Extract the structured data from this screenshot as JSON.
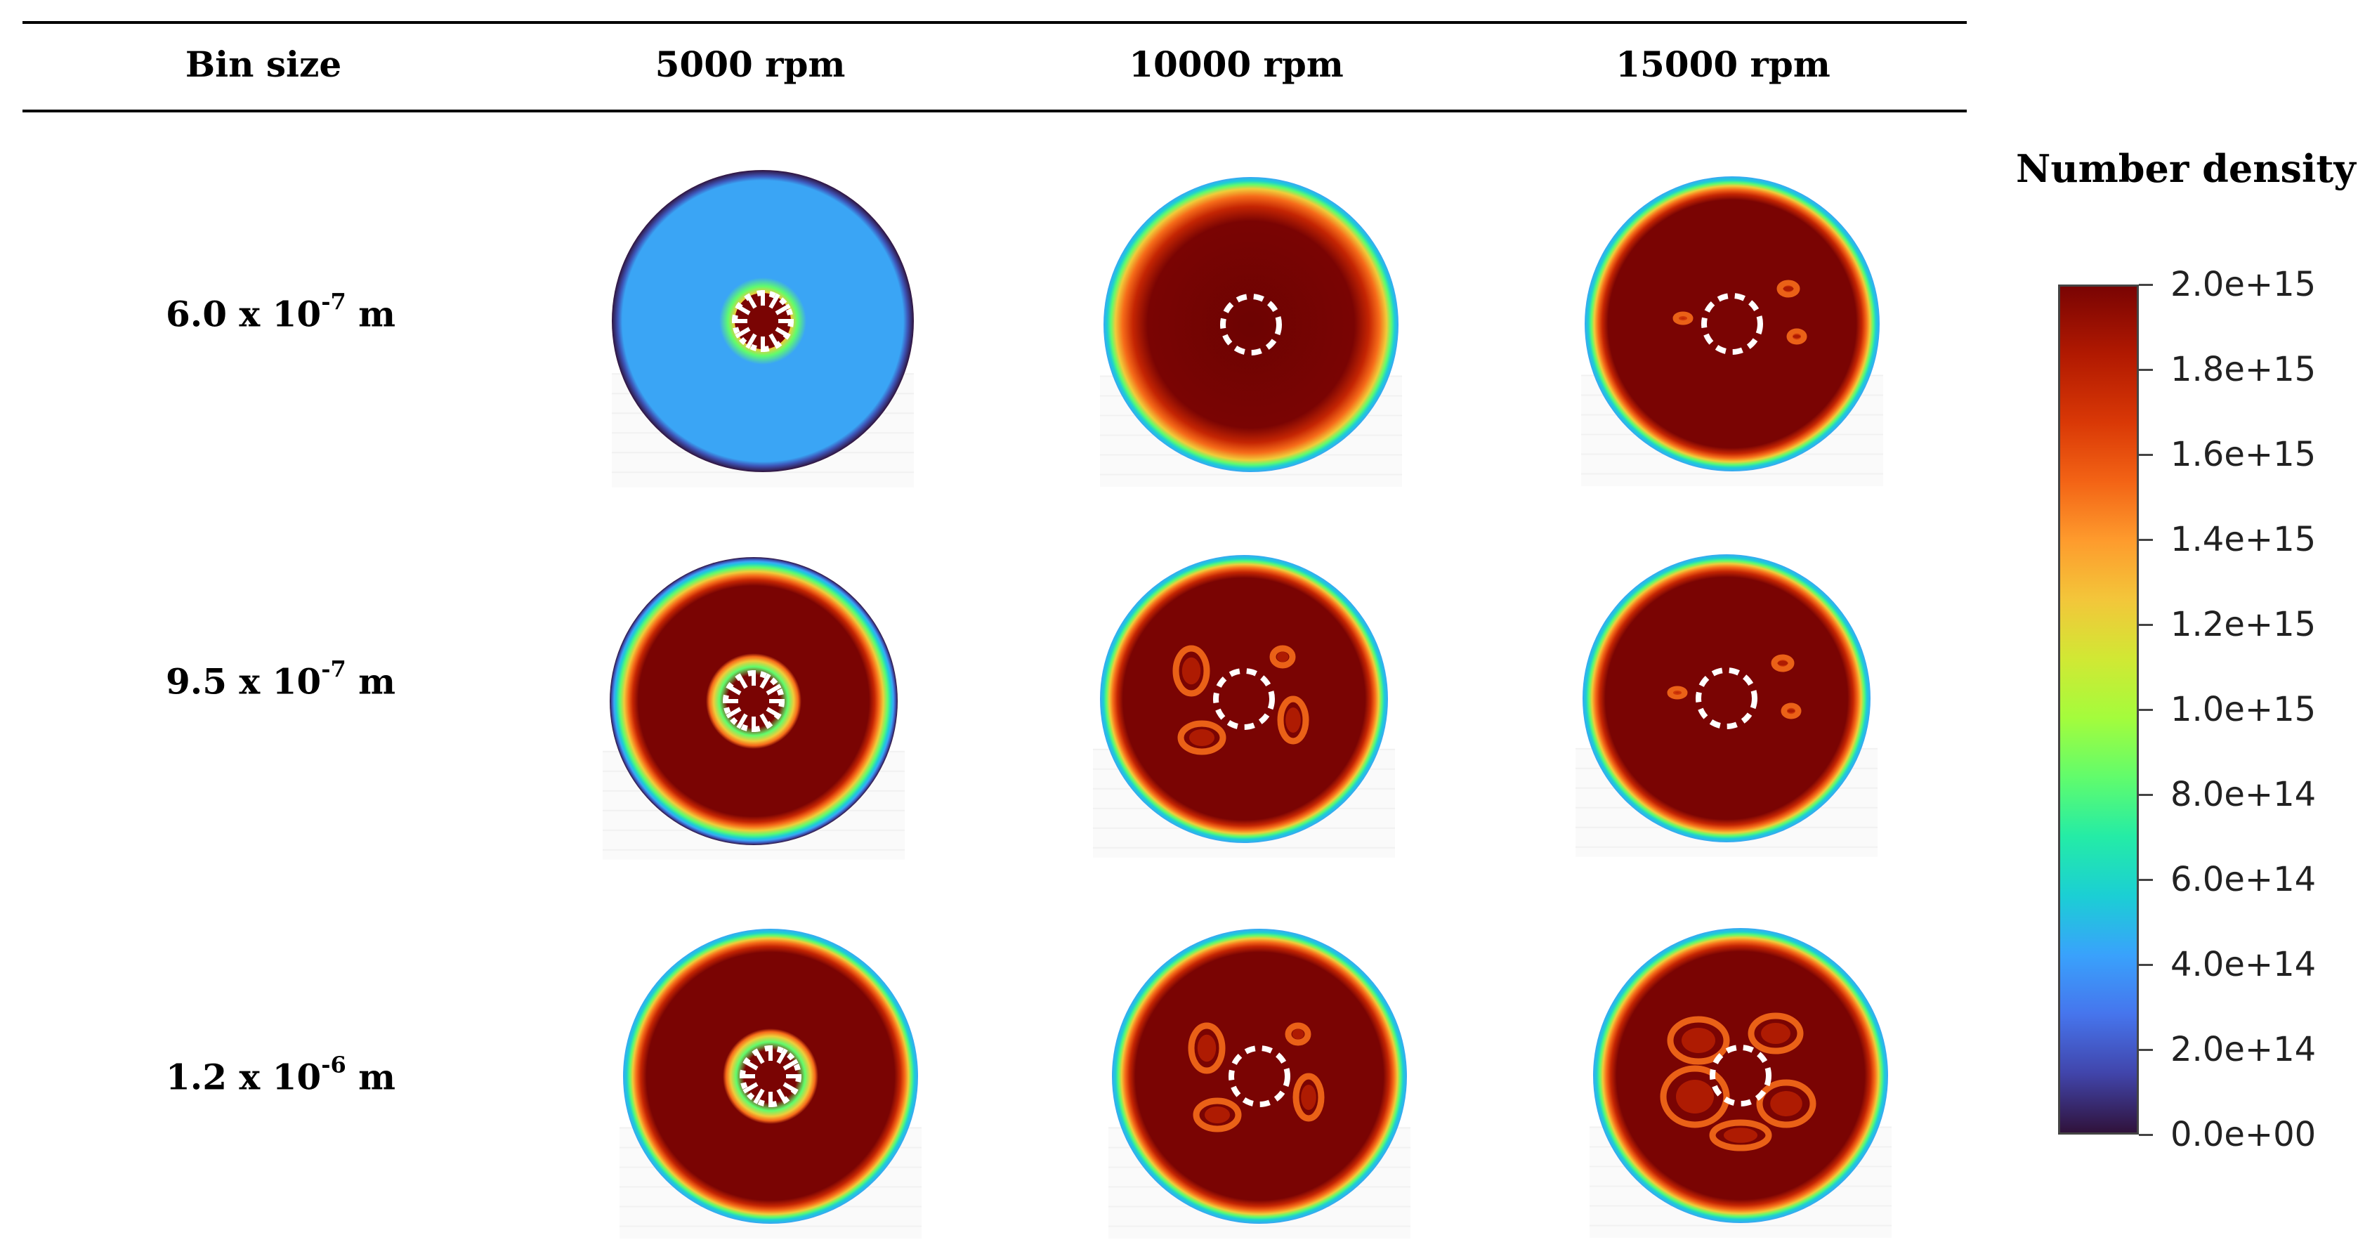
{
  "table": {
    "header": {
      "bin_size": "Bin size",
      "col1": "5000 rpm",
      "col2": "10000 rpm",
      "col3": "15000 rpm"
    },
    "rows": [
      {
        "base": "6.0 x 10",
        "exp": "-7",
        "unit": " m"
      },
      {
        "base": "9.5 x 10",
        "exp": "-7",
        "unit": " m"
      },
      {
        "base": "1.2 x 10",
        "exp": "-6",
        "unit": " m"
      }
    ]
  },
  "colorbar": {
    "title": "Number density",
    "labels": [
      "2.0e+15",
      "1.8e+15",
      "1.6e+15",
      "1.4e+15",
      "1.2e+15",
      "1.0e+15",
      "8.0e+14",
      "6.0e+14",
      "4.0e+14",
      "2.0e+14",
      "0.0e+00"
    ]
  },
  "colors": {
    "dark_red": "#7a0403",
    "red": "#c42503",
    "orange": "#f66b19",
    "yellow": "#f0cc3a",
    "green": "#61fc6c",
    "cyan": "#1bcfd4",
    "light_blue": "#3aa5f5",
    "dark_navy": "#30123b"
  }
}
